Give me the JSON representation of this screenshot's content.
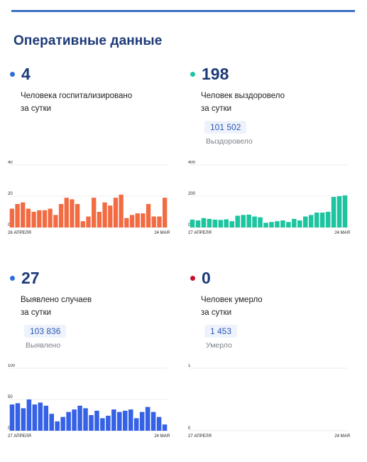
{
  "section_title": "Оперативные данные",
  "colors": {
    "rule": "#3d6fc4",
    "hospital": "#f26b43",
    "recovered": "#1cc4a0",
    "cases": "#3461e6",
    "deaths": "#c8102e"
  },
  "cards": [
    {
      "id": "hospital",
      "number": "4",
      "desc_line1": "Человека госпитализировано",
      "desc_line2": "за сутки",
      "dot_color": "#2f6fd6"
    },
    {
      "id": "recovered",
      "number": "198",
      "desc_line1": "Человек выздоровело",
      "desc_line2": "за сутки",
      "total": "101 502",
      "total_label": "Выздоровело",
      "dot_color": "#1cc4a0"
    },
    {
      "id": "cases",
      "number": "27",
      "desc_line1": "Выявлено случаев",
      "desc_line2": "за сутки",
      "total": "103 836",
      "total_label": "Выявлено",
      "dot_color": "#2f6fd6"
    },
    {
      "id": "deaths",
      "number": "0",
      "desc_line1": "Человек умерло",
      "desc_line2": "за сутки",
      "total": "1 453",
      "total_label": "Умерло",
      "dot_color": "#c8102e"
    }
  ],
  "chart_data": [
    {
      "type": "bar",
      "id": "hospital",
      "ylim": [
        0,
        40
      ],
      "yticks": [
        "0",
        "20",
        "40"
      ],
      "x_start_label": "26 АПРЕЛЯ",
      "x_end_label": "24 МАЯ",
      "values": [
        12,
        15,
        16,
        12,
        10,
        11,
        11,
        12,
        8,
        15,
        19,
        18,
        15,
        4,
        7,
        19,
        10,
        16,
        14,
        19,
        21,
        6,
        8,
        9,
        9,
        15,
        7,
        7,
        19
      ],
      "color": "#f26b43"
    },
    {
      "type": "bar",
      "id": "recovered",
      "ylim": [
        0,
        400
      ],
      "yticks": [
        "0",
        "200",
        "400"
      ],
      "x_start_label": "27 АПРЕЛЯ",
      "x_end_label": "24 МАЯ",
      "values": [
        50,
        45,
        60,
        55,
        50,
        48,
        52,
        40,
        75,
        80,
        82,
        70,
        65,
        30,
        35,
        40,
        45,
        35,
        55,
        45,
        70,
        80,
        95,
        95,
        100,
        195,
        200,
        205
      ],
      "color": "#1cc4a0"
    },
    {
      "type": "bar",
      "id": "cases",
      "ylim": [
        0,
        100
      ],
      "yticks": [
        "0",
        "50",
        "100"
      ],
      "x_start_label": "27 АПРЕЛЯ",
      "x_end_label": "24 МАЯ",
      "values": [
        42,
        44,
        36,
        50,
        42,
        45,
        40,
        27,
        15,
        22,
        30,
        34,
        40,
        36,
        25,
        32,
        20,
        24,
        34,
        30,
        32,
        34,
        20,
        30,
        38,
        30,
        22,
        10
      ],
      "color": "#3461e6"
    },
    {
      "type": "bar",
      "id": "deaths",
      "ylim": [
        0,
        1
      ],
      "yticks": [
        "0",
        "1"
      ],
      "x_start_label": "27 АПРЕЛЯ",
      "x_end_label": "24 МАЯ",
      "values": [],
      "color": "#c8102e"
    }
  ]
}
